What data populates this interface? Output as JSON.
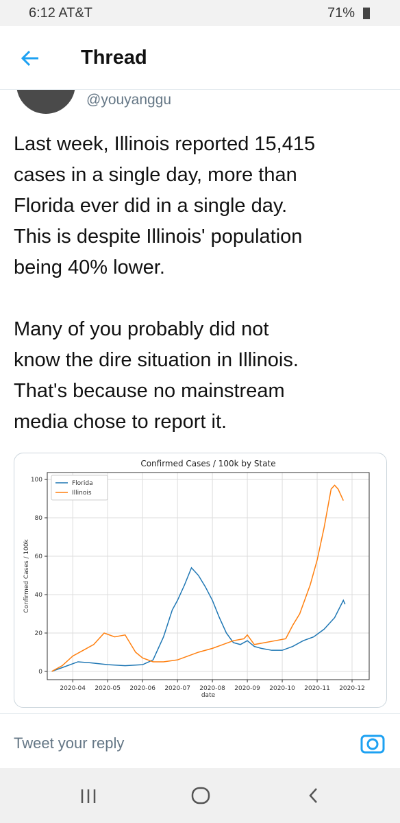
{
  "status_bar": {
    "time_carrier": "6:12 AT&T",
    "battery": "71%"
  },
  "header": {
    "title": "Thread"
  },
  "tweet": {
    "handle": "@youyanggu",
    "paragraphs": [
      [
        "Last week, Illinois reported 15,415",
        "cases in a single day, more than",
        "Florida ever did in a single day.",
        "This is despite Illinois' population",
        "being 40% lower."
      ],
      [
        "Many of you probably did not",
        "know the dire situation in Illinois.",
        "That's because no mainstream",
        "media chose to report it."
      ]
    ]
  },
  "chart_data": {
    "type": "line",
    "title": "Confirmed Cases / 100k by State",
    "x_label": "date",
    "y_label": "Confirmed Cases / 100k",
    "series": [
      {
        "name": "Florida",
        "color": "#1f77b4",
        "x": [
          3.4,
          3.7,
          4.15,
          4.5,
          5.0,
          5.5,
          6.0,
          6.3,
          6.6,
          6.85,
          7.0,
          7.2,
          7.4,
          7.6,
          7.8,
          8.0,
          8.2,
          8.4,
          8.6,
          8.8,
          9.0,
          9.2,
          9.4,
          9.7,
          10.0,
          10.3,
          10.6,
          10.9,
          11.2,
          11.5,
          11.75,
          11.8
        ],
        "values": [
          0,
          2,
          5,
          4.5,
          3.5,
          3,
          3.5,
          6,
          18,
          32,
          37,
          45,
          54,
          50,
          44,
          37,
          28,
          20,
          15,
          14,
          16,
          13,
          12,
          11,
          11,
          13,
          16,
          18,
          22,
          28,
          37,
          35
        ]
      },
      {
        "name": "Illinois",
        "color": "#ff7f0e",
        "x": [
          3.4,
          3.7,
          4.0,
          4.3,
          4.6,
          4.9,
          5.2,
          5.5,
          5.8,
          6.0,
          6.3,
          6.6,
          7.0,
          7.3,
          7.6,
          8.0,
          8.3,
          8.6,
          8.9,
          9.0,
          9.2,
          9.5,
          9.8,
          10.1,
          10.3,
          10.5,
          10.8,
          11.0,
          11.2,
          11.4,
          11.5,
          11.6,
          11.75
        ],
        "values": [
          0,
          3,
          8,
          11,
          14,
          20,
          18,
          19,
          10,
          7,
          5,
          5,
          6,
          8,
          10,
          12,
          14,
          16,
          17,
          19,
          14,
          15,
          16,
          17,
          24,
          30,
          45,
          58,
          75,
          95,
          97,
          95,
          89
        ]
      }
    ],
    "xlim": [
      3.27,
      12.49
    ],
    "xticks": [
      {
        "value": 4,
        "label": "2020-04"
      },
      {
        "value": 5,
        "label": "2020-05"
      },
      {
        "value": 6,
        "label": "2020-06"
      },
      {
        "value": 7,
        "label": "2020-07"
      },
      {
        "value": 8,
        "label": "2020-08"
      },
      {
        "value": 9,
        "label": "2020-09"
      },
      {
        "value": 10,
        "label": "2020-10"
      },
      {
        "value": 11,
        "label": "2020-11"
      },
      {
        "value": 12,
        "label": "2020-12"
      }
    ],
    "ylim": [
      -4.3,
      103.6
    ],
    "yticks": [
      0,
      20,
      40,
      60,
      80,
      100
    ],
    "grid": true,
    "legend": "upper-left"
  },
  "reply": {
    "placeholder": "Tweet your reply"
  }
}
